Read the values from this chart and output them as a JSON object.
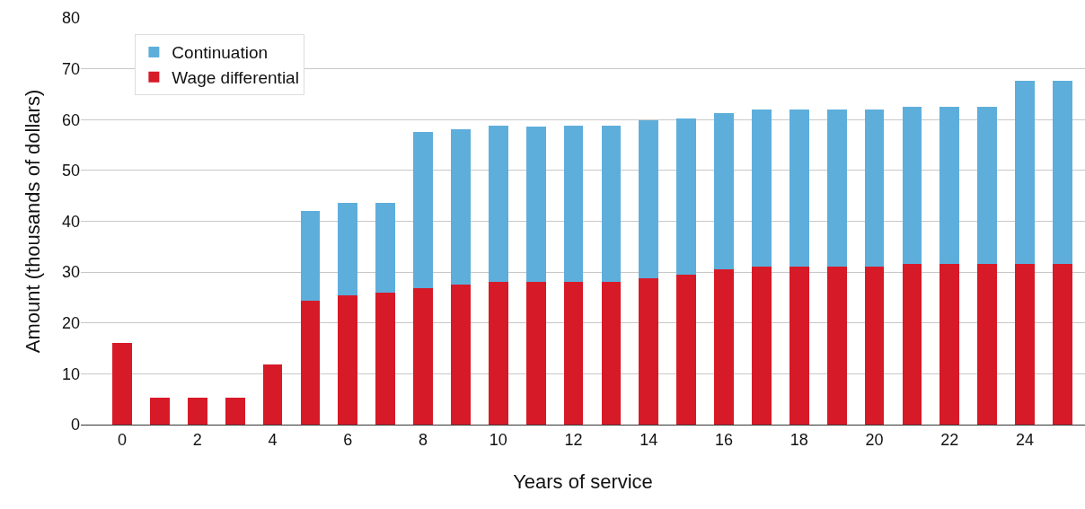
{
  "chart_data": {
    "type": "bar",
    "stacked": true,
    "xlabel": "Years of service",
    "ylabel": "Amount (thousands of dollars)",
    "x": [
      0,
      1,
      2,
      3,
      4,
      5,
      6,
      7,
      8,
      9,
      10,
      11,
      12,
      13,
      14,
      15,
      16,
      17,
      18,
      19,
      20,
      21,
      22,
      23,
      24,
      25
    ],
    "series": [
      {
        "name": "Wage differential",
        "color": "#d71a28",
        "values": [
          16.1,
          5.3,
          5.3,
          5.3,
          11.8,
          24.4,
          25.4,
          26,
          26.9,
          27.6,
          28.1,
          28.1,
          28.1,
          28.1,
          28.8,
          29.5,
          30.6,
          31.1,
          31.1,
          31.1,
          31.1,
          31.6,
          31.6,
          31.6,
          31.6,
          31.6
        ]
      },
      {
        "name": "Continuation",
        "color": "#5eaedb",
        "values": [
          null,
          null,
          null,
          null,
          null,
          17.6,
          18.2,
          17.6,
          30.7,
          30.5,
          30.7,
          30.6,
          30.7,
          30.7,
          31.1,
          30.7,
          30.7,
          30.9,
          30.9,
          30.9,
          30.9,
          30.9,
          30.9,
          30.9,
          36.1,
          36.1
        ]
      }
    ],
    "xlim": [
      -1.1,
      25.6
    ],
    "xticks": [
      0,
      2,
      4,
      6,
      8,
      10,
      12,
      14,
      16,
      18,
      20,
      22,
      24
    ],
    "ylim": [
      0,
      80
    ],
    "yticks": [
      0,
      10,
      20,
      30,
      40,
      50,
      60,
      70,
      80
    ],
    "grid": "y",
    "legend": "top left"
  }
}
